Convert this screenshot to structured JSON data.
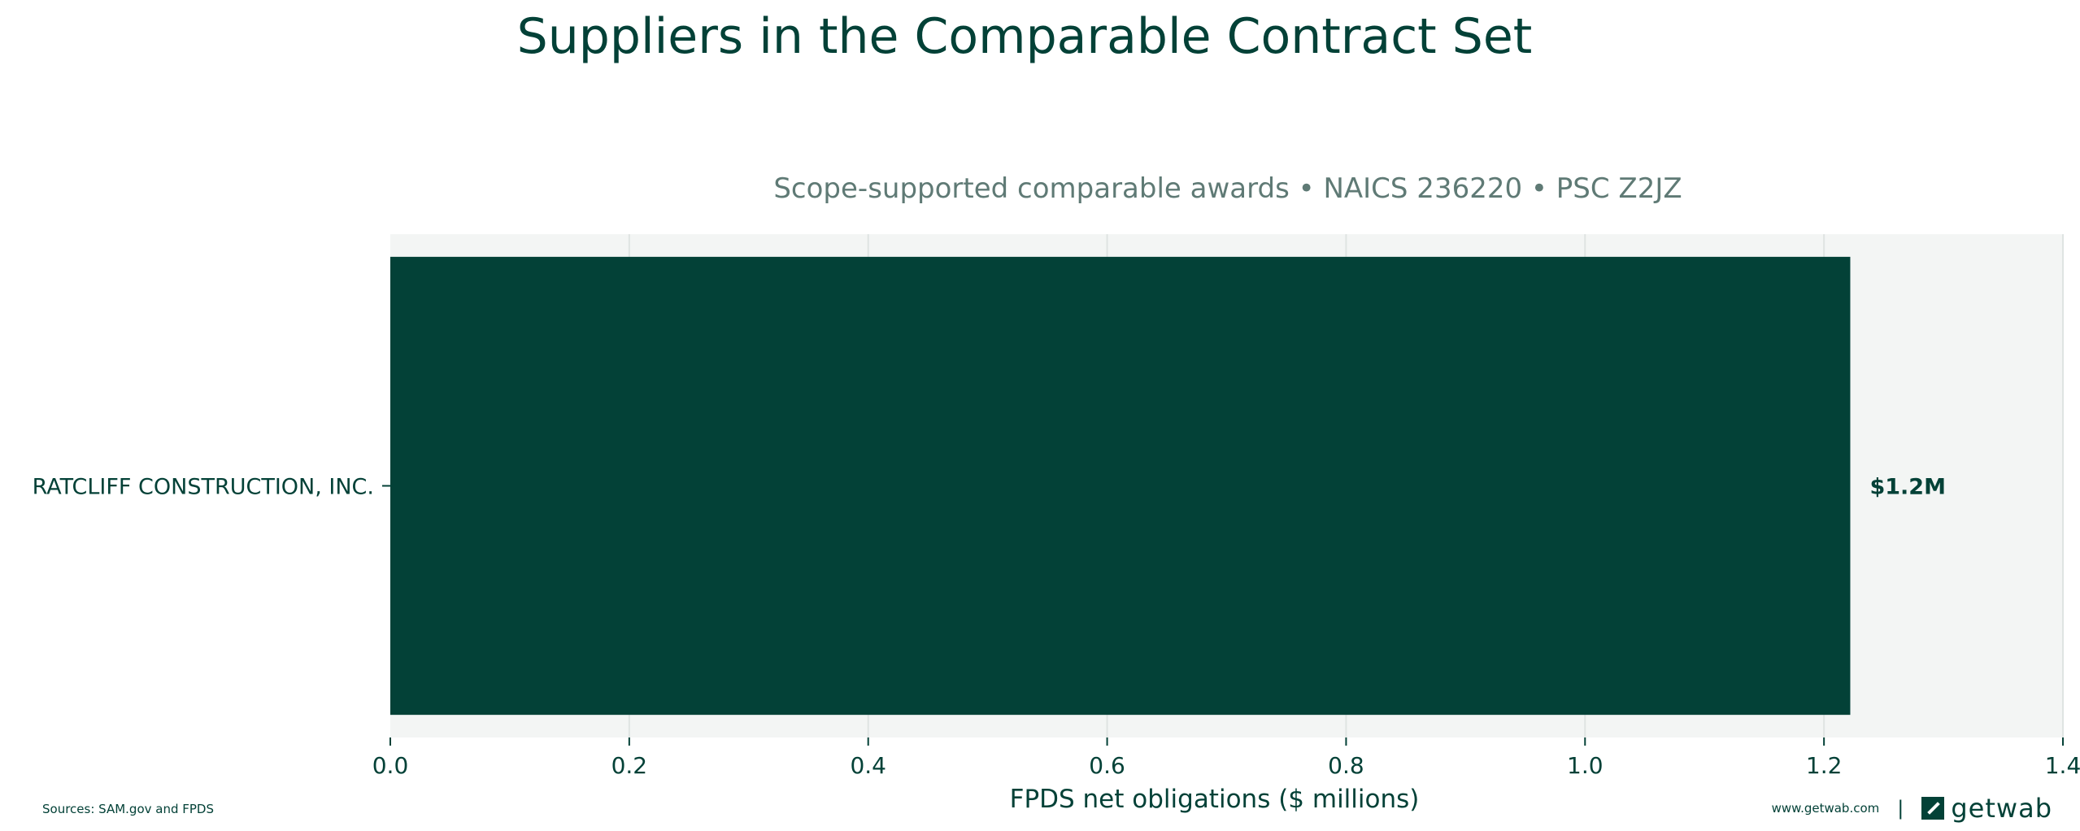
{
  "chart_data": {
    "type": "bar",
    "orientation": "horizontal",
    "title": "Suppliers in the Comparable Contract Set",
    "subtitle": "Scope-supported comparable awards • NAICS 236220 • PSC Z2JZ",
    "categories": [
      "RATCLIFF CONSTRUCTION, INC."
    ],
    "values": [
      1.222
    ],
    "data_labels": [
      "$1.2M"
    ],
    "xlabel": "FPDS net obligations ($ millions)",
    "ylabel": "",
    "xlim": [
      0,
      1.4
    ],
    "xticks": [
      "0.0",
      "0.2",
      "0.4",
      "0.6",
      "0.8",
      "1.0",
      "1.2",
      "1.4"
    ],
    "xtick_values": [
      0,
      0.2,
      0.4,
      0.6,
      0.8,
      1.0,
      1.2,
      1.4
    ],
    "grid": "vertical",
    "bar_color": "#034137",
    "plot_background": "#f3f5f4"
  },
  "footer": {
    "sources": "Sources: SAM.gov and FPDS",
    "website": "www.getwab.com",
    "separator": "|",
    "brand": "getwab",
    "brand_icon": "getwab-logo-icon"
  }
}
